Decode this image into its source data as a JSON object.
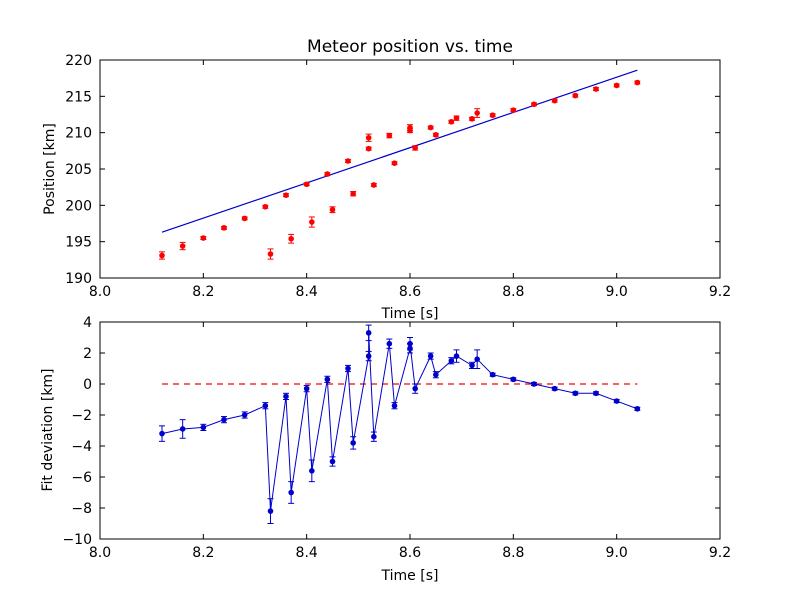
{
  "chart_data": [
    {
      "type": "scatter",
      "title": "Meteor position vs. time",
      "xlabel": "Time [s]",
      "ylabel": "Position [km]",
      "xlim": [
        8.0,
        9.2
      ],
      "ylim": [
        190,
        220
      ],
      "xticks": [
        "8.0",
        "8.2",
        "8.4",
        "8.6",
        "8.8",
        "9.0",
        "9.2"
      ],
      "yticks": [
        "190",
        "195",
        "200",
        "205",
        "210",
        "215",
        "220"
      ],
      "grid": false,
      "colors": {
        "points": "#ff0000",
        "fit": "#0000cc"
      },
      "fit_line": {
        "x": [
          8.12,
          9.04
        ],
        "y": [
          196.3,
          218.6
        ]
      },
      "points": [
        {
          "x": 8.12,
          "y": 193.1,
          "err": 0.5
        },
        {
          "x": 8.16,
          "y": 194.4,
          "err": 0.5
        },
        {
          "x": 8.2,
          "y": 195.5,
          "err": 0.2
        },
        {
          "x": 8.24,
          "y": 196.9,
          "err": 0.2
        },
        {
          "x": 8.28,
          "y": 198.2,
          "err": 0.2
        },
        {
          "x": 8.32,
          "y": 199.8,
          "err": 0.2
        },
        {
          "x": 8.33,
          "y": 193.3,
          "err": 0.7
        },
        {
          "x": 8.36,
          "y": 201.4,
          "err": 0.2
        },
        {
          "x": 8.37,
          "y": 195.4,
          "err": 0.6
        },
        {
          "x": 8.4,
          "y": 202.9,
          "err": 0.2
        },
        {
          "x": 8.41,
          "y": 197.7,
          "err": 0.7
        },
        {
          "x": 8.44,
          "y": 204.3,
          "err": 0.2
        },
        {
          "x": 8.45,
          "y": 199.4,
          "err": 0.4
        },
        {
          "x": 8.48,
          "y": 206.1,
          "err": 0.2
        },
        {
          "x": 8.49,
          "y": 201.6,
          "err": 0.3
        },
        {
          "x": 8.52,
          "y": 207.8,
          "err": 0.2
        },
        {
          "x": 8.52,
          "y": 209.3,
          "err": 0.5
        },
        {
          "x": 8.53,
          "y": 202.8,
          "err": 0.2
        },
        {
          "x": 8.56,
          "y": 209.6,
          "err": 0.3
        },
        {
          "x": 8.57,
          "y": 205.8,
          "err": 0.2
        },
        {
          "x": 8.6,
          "y": 210.3,
          "err": 0.3
        },
        {
          "x": 8.6,
          "y": 210.7,
          "err": 0.4
        },
        {
          "x": 8.61,
          "y": 207.9,
          "err": 0.3
        },
        {
          "x": 8.64,
          "y": 210.7,
          "err": 0.2
        },
        {
          "x": 8.65,
          "y": 209.7,
          "err": 0.2
        },
        {
          "x": 8.68,
          "y": 211.5,
          "err": 0.2
        },
        {
          "x": 8.69,
          "y": 212.0,
          "err": 0.3
        },
        {
          "x": 8.72,
          "y": 211.9,
          "err": 0.2
        },
        {
          "x": 8.73,
          "y": 212.7,
          "err": 0.6
        },
        {
          "x": 8.76,
          "y": 212.4,
          "err": 0.2
        },
        {
          "x": 8.8,
          "y": 213.1,
          "err": 0.2
        },
        {
          "x": 8.84,
          "y": 213.9,
          "err": 0.2
        },
        {
          "x": 8.88,
          "y": 214.4,
          "err": 0.2
        },
        {
          "x": 8.92,
          "y": 215.1,
          "err": 0.2
        },
        {
          "x": 8.96,
          "y": 216.0,
          "err": 0.2
        },
        {
          "x": 9.0,
          "y": 216.5,
          "err": 0.2
        },
        {
          "x": 9.04,
          "y": 216.9,
          "err": 0.2
        }
      ]
    },
    {
      "type": "line",
      "title": "",
      "xlabel": "Time [s]",
      "ylabel": "Fit deviation [km]",
      "xlim": [
        8.0,
        9.2
      ],
      "ylim": [
        -10,
        4
      ],
      "xticks": [
        "8.0",
        "8.2",
        "8.4",
        "8.6",
        "8.8",
        "9.0",
        "9.2"
      ],
      "yticks": [
        "−10",
        "−8",
        "−6",
        "−4",
        "−2",
        "0",
        "2",
        "4"
      ],
      "grid": false,
      "colors": {
        "series": "#0000cc",
        "zero_line": "#ff0000"
      },
      "zero_line": {
        "x": [
          8.12,
          9.04
        ],
        "y": 0
      },
      "points": [
        {
          "x": 8.12,
          "y": -3.2,
          "err": 0.5
        },
        {
          "x": 8.16,
          "y": -2.9,
          "err": 0.6
        },
        {
          "x": 8.2,
          "y": -2.8,
          "err": 0.2
        },
        {
          "x": 8.24,
          "y": -2.3,
          "err": 0.2
        },
        {
          "x": 8.28,
          "y": -2.0,
          "err": 0.2
        },
        {
          "x": 8.32,
          "y": -1.4,
          "err": 0.2
        },
        {
          "x": 8.33,
          "y": -8.2,
          "err": 0.8
        },
        {
          "x": 8.36,
          "y": -0.8,
          "err": 0.2
        },
        {
          "x": 8.37,
          "y": -7.0,
          "err": 0.7
        },
        {
          "x": 8.4,
          "y": -0.3,
          "err": 0.2
        },
        {
          "x": 8.41,
          "y": -5.6,
          "err": 0.7
        },
        {
          "x": 8.44,
          "y": 0.3,
          "err": 0.2
        },
        {
          "x": 8.45,
          "y": -5.0,
          "err": 0.3
        },
        {
          "x": 8.48,
          "y": 1.0,
          "err": 0.2
        },
        {
          "x": 8.49,
          "y": -3.8,
          "err": 0.4
        },
        {
          "x": 8.52,
          "y": 1.8,
          "err": 0.3
        },
        {
          "x": 8.52,
          "y": 3.3,
          "err": 0.5
        },
        {
          "x": 8.53,
          "y": -3.4,
          "err": 0.3
        },
        {
          "x": 8.56,
          "y": 2.6,
          "err": 0.3
        },
        {
          "x": 8.57,
          "y": -1.4,
          "err": 0.2
        },
        {
          "x": 8.6,
          "y": 2.3,
          "err": 0.3
        },
        {
          "x": 8.6,
          "y": 2.6,
          "err": 0.4
        },
        {
          "x": 8.61,
          "y": -0.3,
          "err": 0.3
        },
        {
          "x": 8.64,
          "y": 1.8,
          "err": 0.2
        },
        {
          "x": 8.65,
          "y": 0.6,
          "err": 0.2
        },
        {
          "x": 8.68,
          "y": 1.5,
          "err": 0.2
        },
        {
          "x": 8.69,
          "y": 1.8,
          "err": 0.4
        },
        {
          "x": 8.72,
          "y": 1.2,
          "err": 0.2
        },
        {
          "x": 8.73,
          "y": 1.6,
          "err": 0.6
        },
        {
          "x": 8.76,
          "y": 0.6,
          "err": 0.1
        },
        {
          "x": 8.8,
          "y": 0.3,
          "err": 0.1
        },
        {
          "x": 8.84,
          "y": 0.0,
          "err": 0.1
        },
        {
          "x": 8.88,
          "y": -0.3,
          "err": 0.1
        },
        {
          "x": 8.92,
          "y": -0.6,
          "err": 0.1
        },
        {
          "x": 8.96,
          "y": -0.6,
          "err": 0.1
        },
        {
          "x": 9.0,
          "y": -1.1,
          "err": 0.1
        },
        {
          "x": 9.04,
          "y": -1.6,
          "err": 0.1
        }
      ]
    }
  ]
}
